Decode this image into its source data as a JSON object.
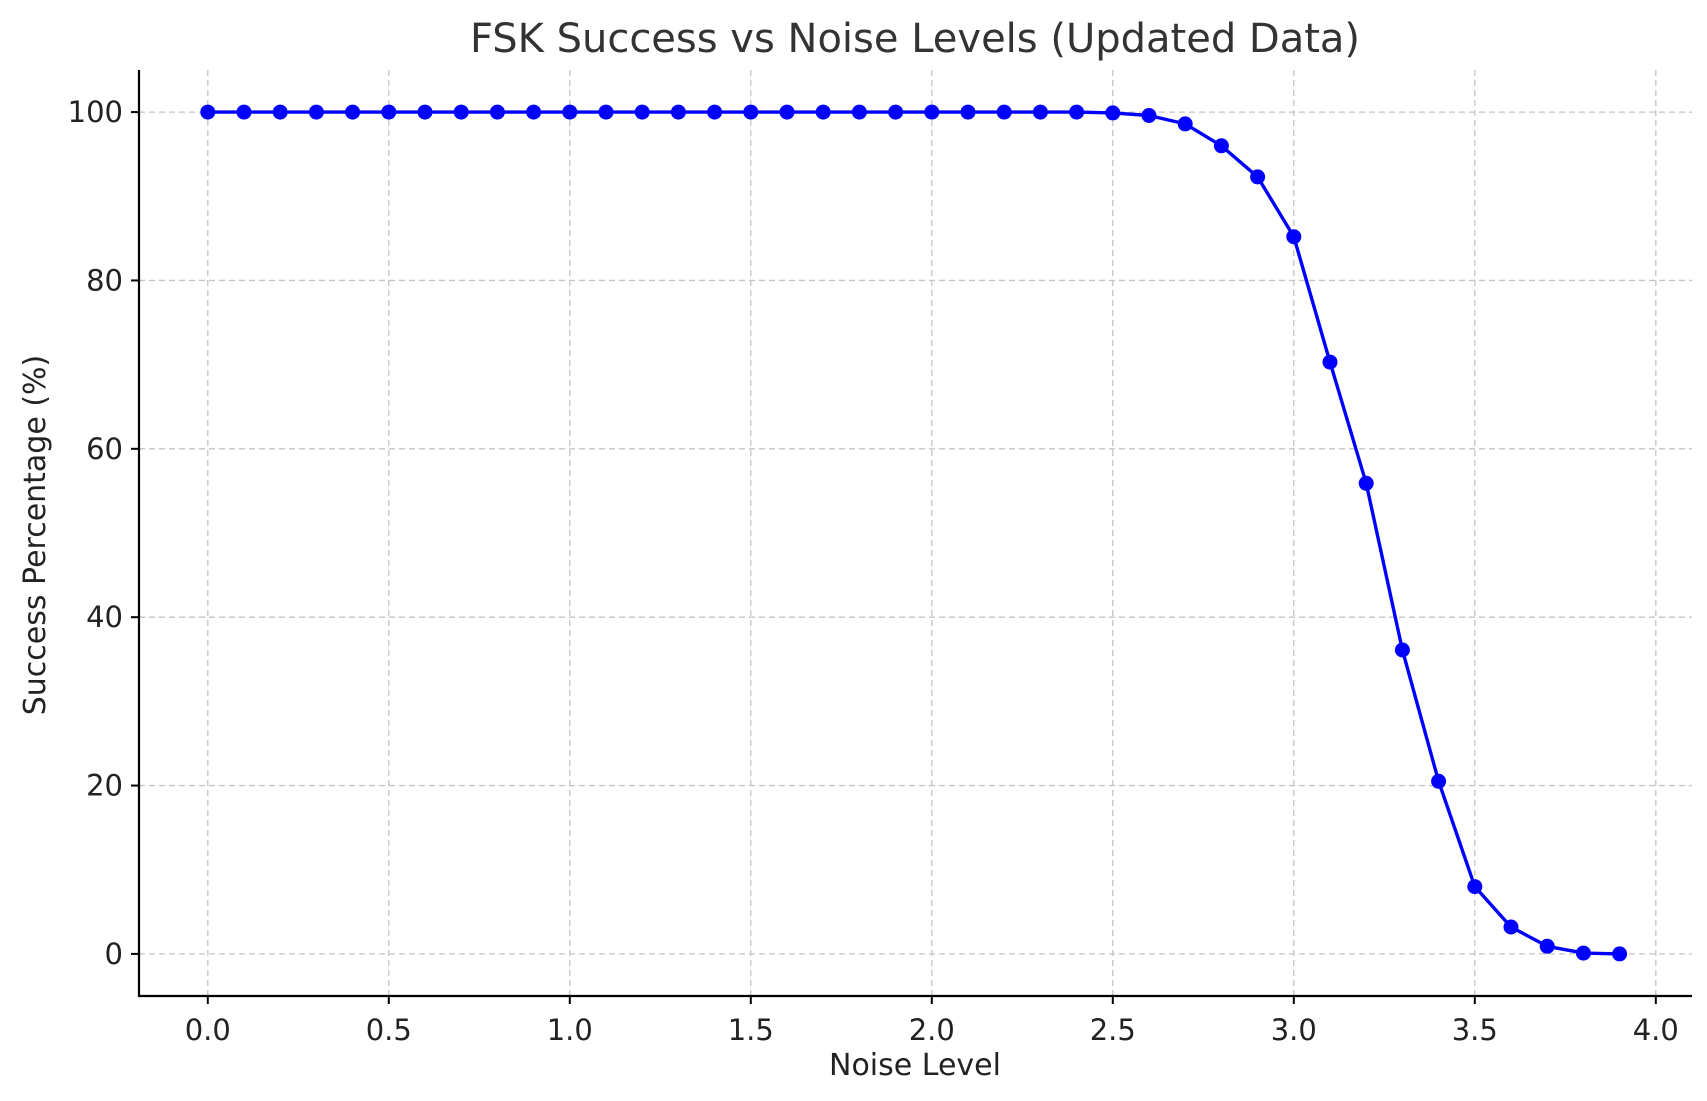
{
  "chart_data": {
    "type": "line",
    "title": "FSK Success vs Noise Levels (Updated Data)",
    "xlabel": "Noise Level",
    "ylabel": "Success Percentage (%)",
    "xlim": [
      -0.19,
      4.1
    ],
    "ylim": [
      -5,
      105
    ],
    "xticks": [
      0.0,
      0.5,
      1.0,
      1.5,
      2.0,
      2.5,
      3.0,
      3.5,
      4.0
    ],
    "xtick_labels": [
      "0.0",
      "0.5",
      "1.0",
      "1.5",
      "2.0",
      "2.5",
      "3.0",
      "3.5",
      "4.0"
    ],
    "yticks": [
      0,
      20,
      40,
      60,
      80,
      100
    ],
    "ytick_labels": [
      "0",
      "20",
      "40",
      "60",
      "80",
      "100"
    ],
    "grid": true,
    "series": [
      {
        "color": "#0000ff",
        "marker": "circle",
        "x": [
          0.0,
          0.1,
          0.2,
          0.3,
          0.4,
          0.5,
          0.6,
          0.7,
          0.8,
          0.9,
          1.0,
          1.1,
          1.2,
          1.3,
          1.4,
          1.5,
          1.6,
          1.7,
          1.8,
          1.9,
          2.0,
          2.1,
          2.2,
          2.3,
          2.4,
          2.5,
          2.6,
          2.7,
          2.8,
          2.9,
          3.0,
          3.1,
          3.2,
          3.3,
          3.4,
          3.5,
          3.6,
          3.7,
          3.8,
          3.9
        ],
        "values": [
          100,
          100,
          100,
          100,
          100,
          100,
          100,
          100,
          100,
          100,
          100,
          100,
          100,
          100,
          100,
          100,
          100,
          100,
          100,
          100,
          100,
          100,
          100,
          100,
          100,
          99.9,
          99.6,
          98.6,
          96.0,
          92.3,
          85.2,
          70.3,
          55.9,
          36.1,
          20.5,
          8.0,
          3.2,
          0.9,
          0.1,
          0.0
        ]
      }
    ]
  }
}
